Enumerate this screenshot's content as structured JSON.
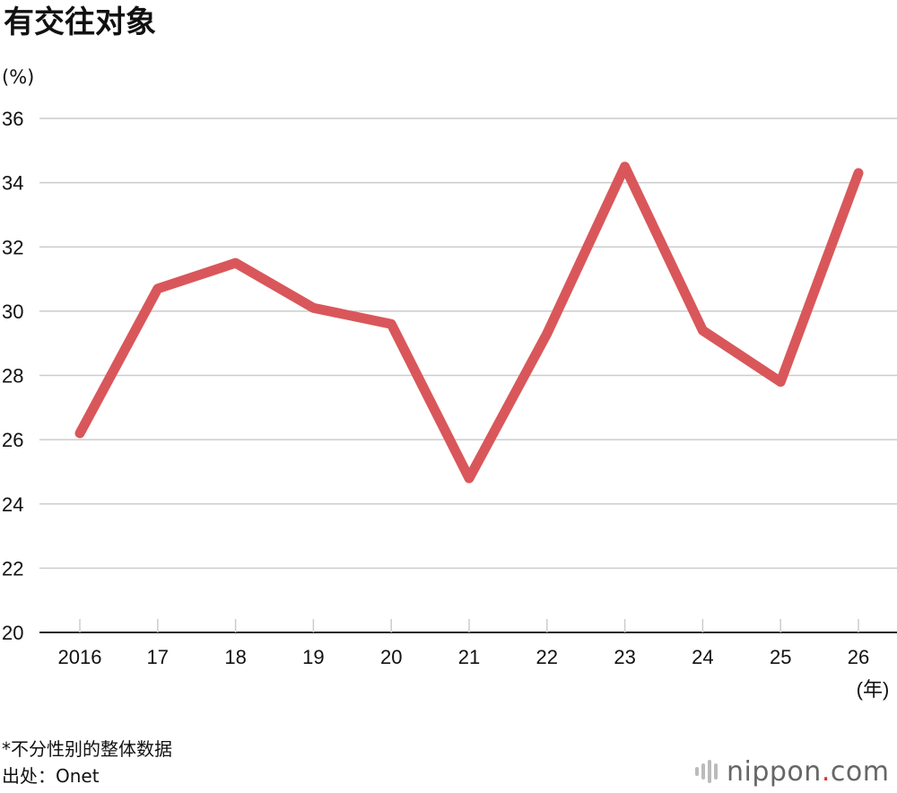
{
  "chart_data": {
    "type": "line",
    "title": "有交往对象",
    "ylabel": "(%)",
    "xlabel": "(年)",
    "categories": [
      "2016",
      "17",
      "18",
      "19",
      "20",
      "21",
      "22",
      "23",
      "24",
      "25",
      "26"
    ],
    "values": [
      26.2,
      30.7,
      31.5,
      30.1,
      29.6,
      24.8,
      29.3,
      34.5,
      29.4,
      27.8,
      34.3
    ],
    "ylim": [
      20,
      36
    ],
    "yticks": [
      "20",
      "22",
      "24",
      "26",
      "28",
      "30",
      "32",
      "34",
      "36"
    ],
    "grid": true,
    "line_color": "#d9575a"
  },
  "footer": {
    "note": "*不分性别的整体数据",
    "source": "出处：Onet"
  },
  "logo": {
    "name": "nippon",
    "dot": ".",
    "suffix": "com"
  }
}
